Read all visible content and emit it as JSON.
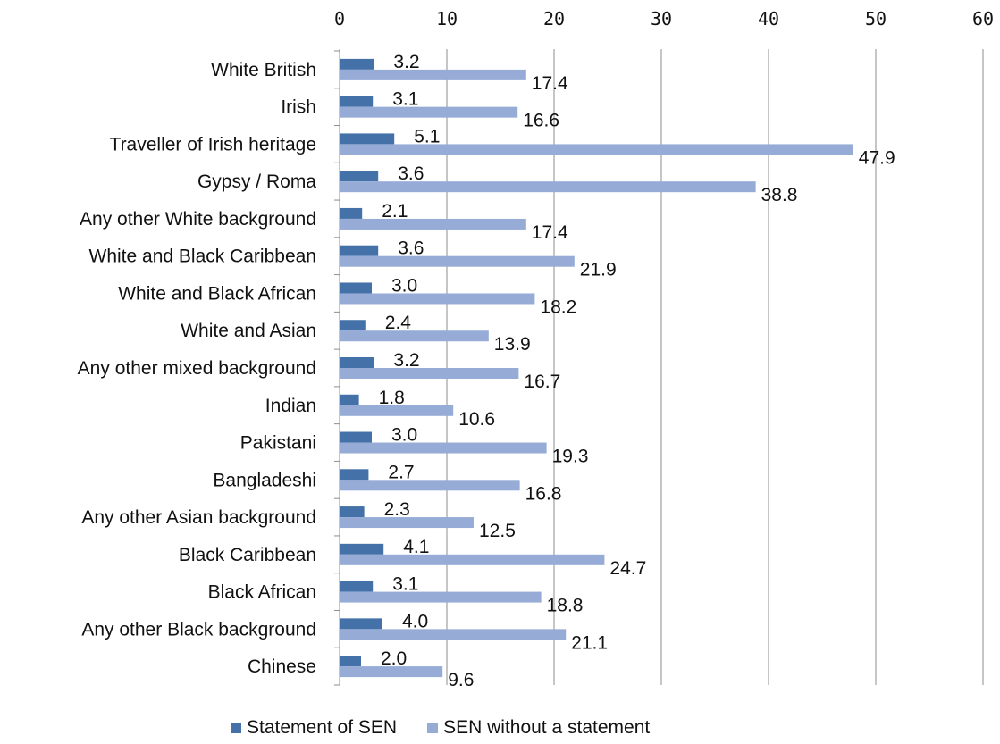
{
  "chart_data": {
    "type": "bar",
    "orientation": "horizontal",
    "categories": [
      "White British",
      "Irish",
      "Traveller of Irish heritage",
      "Gypsy / Roma",
      "Any other White background",
      "White and Black Caribbean",
      "White and Black African",
      "White and Asian",
      "Any other mixed background",
      "Indian",
      "Pakistani",
      "Bangladeshi",
      "Any other Asian background",
      "Black Caribbean",
      "Black African",
      "Any other Black background",
      "Chinese"
    ],
    "series": [
      {
        "name": "Statement of SEN",
        "color": "#4472a8",
        "values": [
          3.2,
          3.1,
          5.1,
          3.6,
          2.1,
          3.6,
          3.0,
          2.4,
          3.2,
          1.8,
          3.0,
          2.7,
          2.3,
          4.1,
          3.1,
          4.0,
          2.0
        ],
        "labels": [
          "3.2",
          "3.1",
          "5.1",
          "3.6",
          "2.1",
          "3.6",
          "3.0",
          "2.4",
          "3.2",
          "1.8",
          "3.0",
          "2.7",
          "2.3",
          "4.1",
          "3.1",
          "4.0",
          "2.0"
        ]
      },
      {
        "name": "SEN without a statement",
        "color": "#96abd6",
        "values": [
          17.4,
          16.6,
          47.9,
          38.8,
          17.4,
          21.9,
          18.2,
          13.9,
          16.7,
          10.6,
          19.3,
          16.8,
          12.5,
          24.7,
          18.8,
          21.1,
          9.6
        ],
        "labels": [
          "17.4",
          "16.6",
          "47.9",
          "38.8",
          "17.4",
          "21.9",
          "18.2",
          "13.9",
          "16.7",
          "10.6",
          "19.3",
          "16.8",
          "12.5",
          "24.7",
          "18.8",
          "21.1",
          "9.6"
        ]
      }
    ],
    "xlim": [
      0,
      60
    ],
    "xticks": [
      "0",
      "10",
      "20",
      "30",
      "40",
      "50",
      "60"
    ],
    "xaxis_position": "top",
    "grid": "vertical",
    "gridline_color": "#8c8c8c",
    "legend_position": "bottom",
    "title": "",
    "xlabel": "",
    "ylabel": ""
  }
}
